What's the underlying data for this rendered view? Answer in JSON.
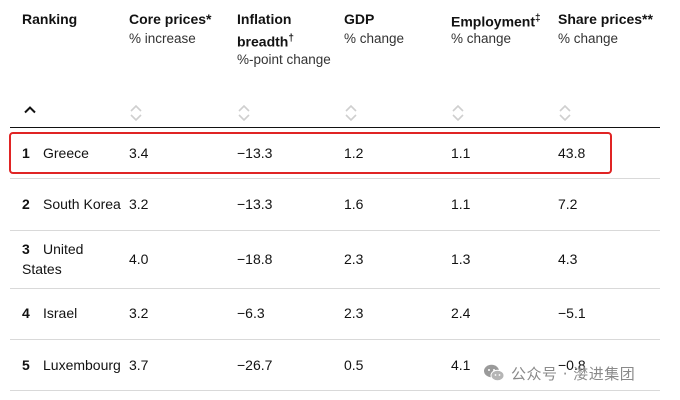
{
  "headers": [
    {
      "title": "Ranking",
      "sub": ""
    },
    {
      "title": "Core prices*",
      "sub": "% increase"
    },
    {
      "title_line1": "Inflation",
      "title_line2": "breadth",
      "title_mark": "†",
      "sub": "%-point change"
    },
    {
      "title": "GDP",
      "sub": "% change"
    },
    {
      "title": "Employment",
      "title_mark": "‡",
      "sub": "% change"
    },
    {
      "title": "Share prices**",
      "sub": "% change"
    }
  ],
  "sort": {
    "caret_icon": "chevron-up-icon",
    "sort_icon": "sort-arrows-icon"
  },
  "rows": [
    {
      "rank": "1",
      "country": "Greece",
      "core": "3.4",
      "breadth": "−13.3",
      "gdp": "1.2",
      "employment": "1.1",
      "shares": "43.8"
    },
    {
      "rank": "2",
      "country": "South Korea",
      "core": "3.2",
      "breadth": "−13.3",
      "gdp": "1.6",
      "employment": "1.1",
      "shares": "7.2"
    },
    {
      "rank": "3",
      "country_line1": "United",
      "country_line2": "States",
      "core": "4.0",
      "breadth": "−18.8",
      "gdp": "2.3",
      "employment": "1.3",
      "shares": "4.3"
    },
    {
      "rank": "4",
      "country": "Israel",
      "core": "3.2",
      "breadth": "−6.3",
      "gdp": "2.3",
      "employment": "2.4",
      "shares": "−5.1"
    },
    {
      "rank": "5",
      "country": "Luxembourg",
      "core": "3.7",
      "breadth": "−26.7",
      "gdp": "0.5",
      "employment": "4.1",
      "shares": "−0.8"
    }
  ],
  "highlight_color": "#e02424",
  "watermark": {
    "text": "公众号 · 漤进集团",
    "icon": "wechat-icon"
  }
}
